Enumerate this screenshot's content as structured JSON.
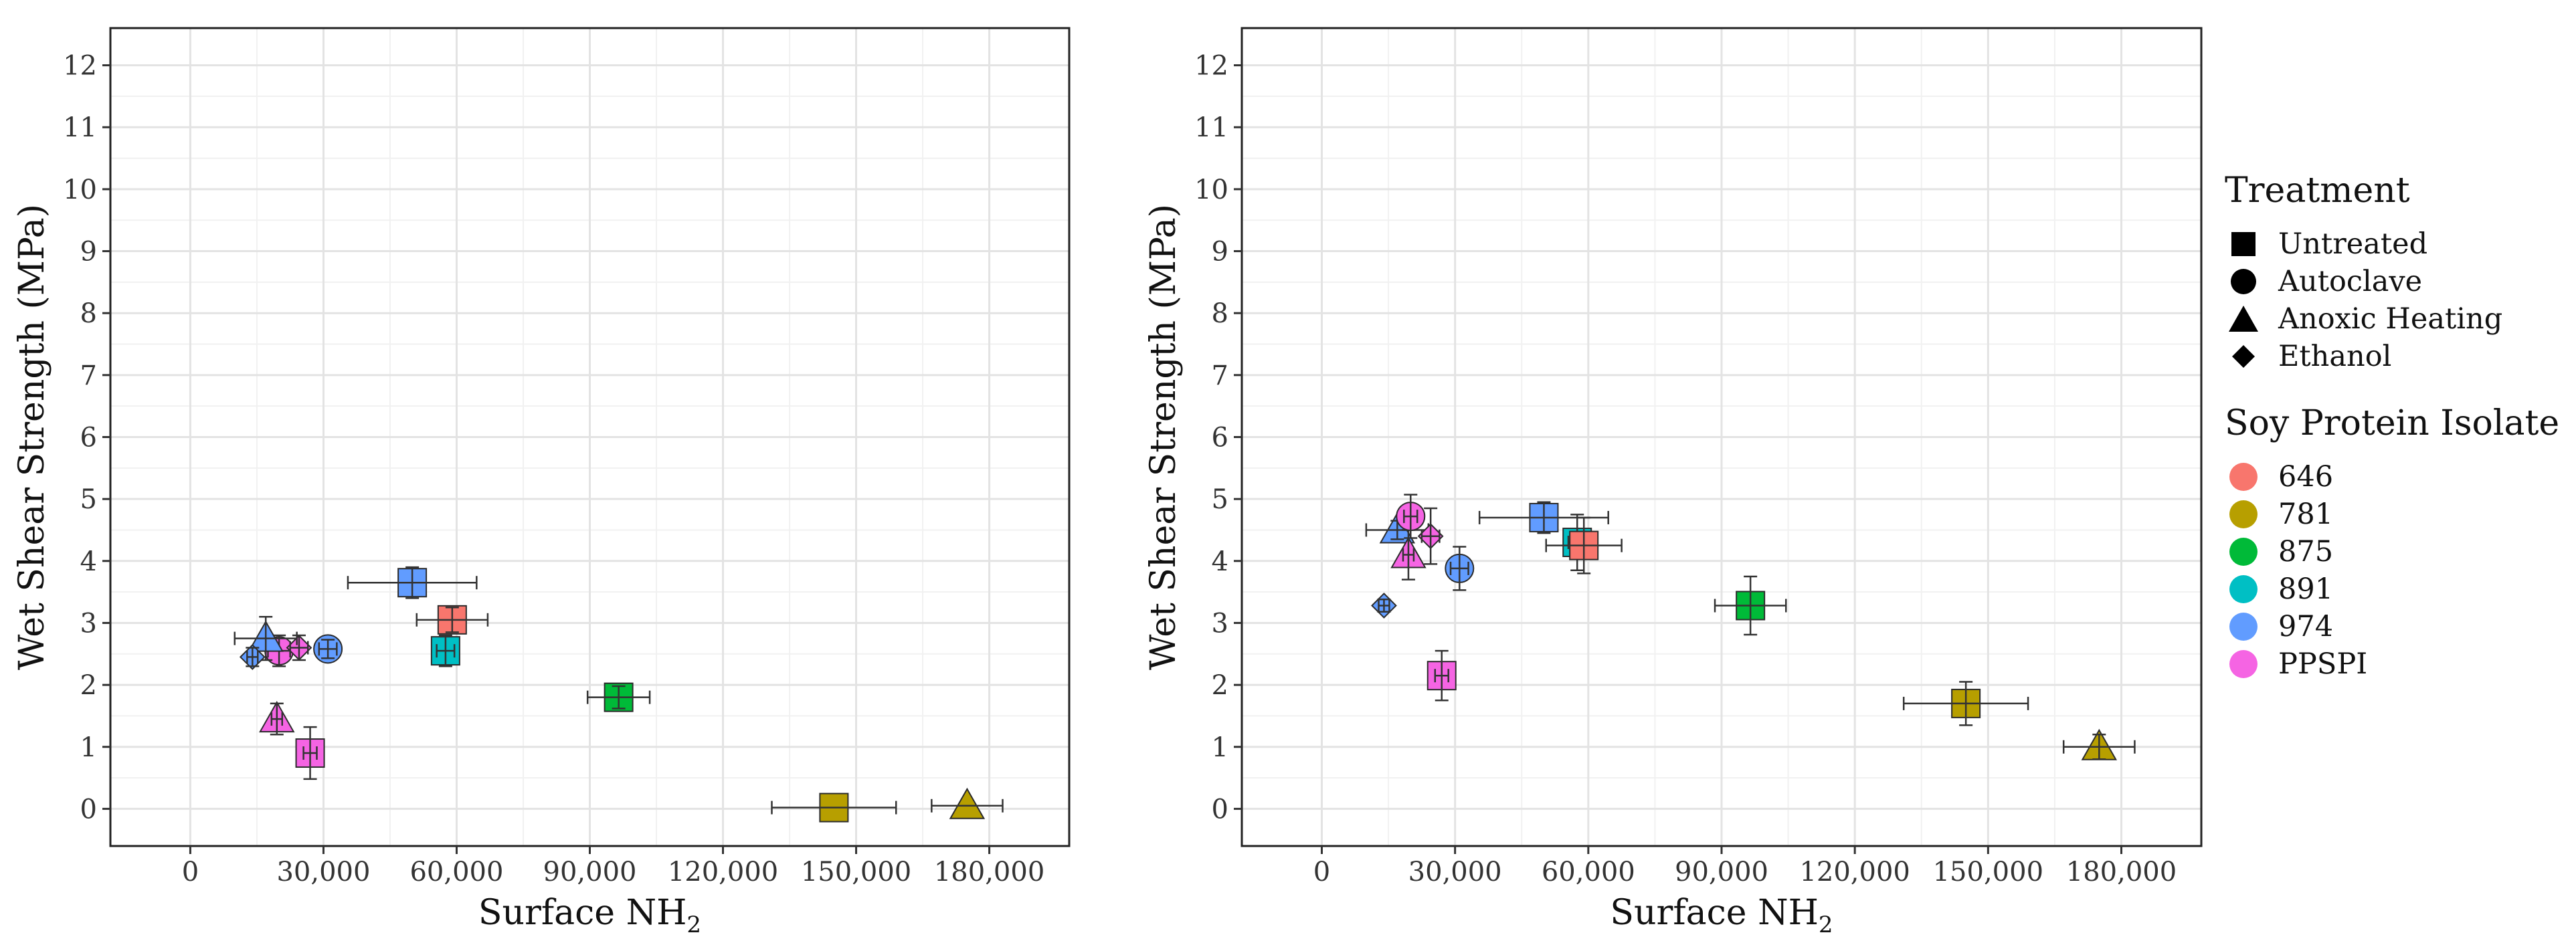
{
  "chart_data": [
    {
      "type": "scatter",
      "panel": "left",
      "title": "",
      "xlabel": "Surface NH",
      "xlabel_subscript": "2",
      "ylabel": "Wet Shear Strength (MPa)",
      "xlim": [
        -18000,
        198000
      ],
      "ylim": [
        -0.6,
        12.6
      ],
      "xticks": [
        0,
        30000,
        60000,
        90000,
        120000,
        150000,
        180000
      ],
      "xtick_labels": [
        "0",
        "30,000",
        "60,000",
        "90,000",
        "120,000",
        "150,000",
        "180,000"
      ],
      "yticks": [
        0,
        1,
        2,
        3,
        4,
        5,
        6,
        7,
        8,
        9,
        10,
        11,
        12
      ],
      "ytick_labels": [
        "0",
        "1",
        "2",
        "3",
        "4",
        "5",
        "6",
        "7",
        "8",
        "9",
        "10",
        "11",
        "12"
      ],
      "grid": true,
      "points": [
        {
          "isolate": "PPSPI",
          "treatment": "Untreated",
          "x": 27000,
          "y": 0.9,
          "xerr": 1500,
          "yerr": 0.42
        },
        {
          "isolate": "PPSPI",
          "treatment": "Anoxic Heating",
          "x": 19500,
          "y": 1.45,
          "xerr": 1200,
          "yerr": 0.25
        },
        {
          "isolate": "PPSPI",
          "treatment": "Autoclave",
          "x": 20000,
          "y": 2.55,
          "xerr": 2500,
          "yerr": 0.25
        },
        {
          "isolate": "PPSPI",
          "treatment": "Ethanol",
          "x": 24500,
          "y": 2.6,
          "xerr": 2000,
          "yerr": 0.2
        },
        {
          "isolate": "974",
          "treatment": "Anoxic Heating",
          "x": 17000,
          "y": 2.75,
          "xerr": 7000,
          "yerr": 0.35
        },
        {
          "isolate": "974",
          "treatment": "Ethanol",
          "x": 14000,
          "y": 2.45,
          "xerr": 1200,
          "yerr": 0.15
        },
        {
          "isolate": "974",
          "treatment": "Autoclave",
          "x": 31000,
          "y": 2.58,
          "xerr": 2000,
          "yerr": 0.15
        },
        {
          "isolate": "974",
          "treatment": "Untreated",
          "x": 50000,
          "y": 3.65,
          "xerr": 14500,
          "yerr": 0.25
        },
        {
          "isolate": "646",
          "treatment": "Untreated",
          "x": 59000,
          "y": 3.05,
          "xerr": 8000,
          "yerr": 0.2
        },
        {
          "isolate": "891",
          "treatment": "Untreated",
          "x": 57500,
          "y": 2.55,
          "xerr": 2000,
          "yerr": 0.25
        },
        {
          "isolate": "875",
          "treatment": "Untreated",
          "x": 96500,
          "y": 1.8,
          "xerr": 7000,
          "yerr": 0.18
        },
        {
          "isolate": "781",
          "treatment": "Untreated",
          "x": 145000,
          "y": 0.02,
          "xerr": 14000,
          "yerr": 0.0
        },
        {
          "isolate": "781",
          "treatment": "Anoxic Heating",
          "x": 175000,
          "y": 0.05,
          "xerr": 8000,
          "yerr": 0.0
        }
      ]
    },
    {
      "type": "scatter",
      "panel": "right",
      "title": "",
      "xlabel": "Surface NH",
      "xlabel_subscript": "2",
      "ylabel": "Wet Shear Strength (MPa)",
      "xlim": [
        -18000,
        198000
      ],
      "ylim": [
        -0.6,
        12.6
      ],
      "xticks": [
        0,
        30000,
        60000,
        90000,
        120000,
        150000,
        180000
      ],
      "xtick_labels": [
        "0",
        "30,000",
        "60,000",
        "90,000",
        "120,000",
        "150,000",
        "180,000"
      ],
      "yticks": [
        0,
        1,
        2,
        3,
        4,
        5,
        6,
        7,
        8,
        9,
        10,
        11,
        12
      ],
      "ytick_labels": [
        "0",
        "1",
        "2",
        "3",
        "4",
        "5",
        "6",
        "7",
        "8",
        "9",
        "10",
        "11",
        "12"
      ],
      "grid": true,
      "points": [
        {
          "isolate": "974",
          "treatment": "Ethanol",
          "x": 14000,
          "y": 3.28,
          "xerr": 1200,
          "yerr": 0.1
        },
        {
          "isolate": "974",
          "treatment": "Anoxic Heating",
          "x": 17000,
          "y": 4.5,
          "xerr": 7000,
          "yerr": 0.15
        },
        {
          "isolate": "PPSPI",
          "treatment": "Anoxic Heating",
          "x": 19500,
          "y": 4.1,
          "xerr": 1200,
          "yerr": 0.4
        },
        {
          "isolate": "PPSPI",
          "treatment": "Autoclave",
          "x": 20000,
          "y": 4.72,
          "xerr": 1500,
          "yerr": 0.35
        },
        {
          "isolate": "PPSPI",
          "treatment": "Ethanol",
          "x": 24500,
          "y": 4.4,
          "xerr": 2000,
          "yerr": 0.45
        },
        {
          "isolate": "974",
          "treatment": "Autoclave",
          "x": 31000,
          "y": 3.88,
          "xerr": 2000,
          "yerr": 0.35
        },
        {
          "isolate": "PPSPI",
          "treatment": "Untreated",
          "x": 27000,
          "y": 2.15,
          "xerr": 1500,
          "yerr": 0.4
        },
        {
          "isolate": "974",
          "treatment": "Untreated",
          "x": 50000,
          "y": 4.7,
          "xerr": 14500,
          "yerr": 0.25
        },
        {
          "isolate": "891",
          "treatment": "Untreated",
          "x": 57500,
          "y": 4.3,
          "xerr": 2000,
          "yerr": 0.45
        },
        {
          "isolate": "646",
          "treatment": "Untreated",
          "x": 59000,
          "y": 4.25,
          "xerr": 8500,
          "yerr": 0.45
        },
        {
          "isolate": "875",
          "treatment": "Untreated",
          "x": 96500,
          "y": 3.28,
          "xerr": 8000,
          "yerr": 0.47
        },
        {
          "isolate": "781",
          "treatment": "Untreated",
          "x": 145000,
          "y": 1.7,
          "xerr": 14000,
          "yerr": 0.35
        },
        {
          "isolate": "781",
          "treatment": "Anoxic Heating",
          "x": 175000,
          "y": 1.0,
          "xerr": 8000,
          "yerr": 0.2
        }
      ]
    }
  ],
  "legend": {
    "treatment_title": "Treatment",
    "treatments": [
      {
        "label": "Untreated",
        "shape": "square"
      },
      {
        "label": "Autoclave",
        "shape": "circle"
      },
      {
        "label": "Anoxic Heating",
        "shape": "triangle"
      },
      {
        "label": "Ethanol",
        "shape": "diamond"
      }
    ],
    "isolate_title": "Soy Protein Isolate",
    "isolates": [
      {
        "label": "646",
        "color": "#F8766D"
      },
      {
        "label": "781",
        "color": "#B79F00"
      },
      {
        "label": "875",
        "color": "#00BA38"
      },
      {
        "label": "891",
        "color": "#00BFC4"
      },
      {
        "label": "974",
        "color": "#619CFF"
      },
      {
        "label": "PPSPI",
        "color": "#F564E3"
      }
    ]
  }
}
